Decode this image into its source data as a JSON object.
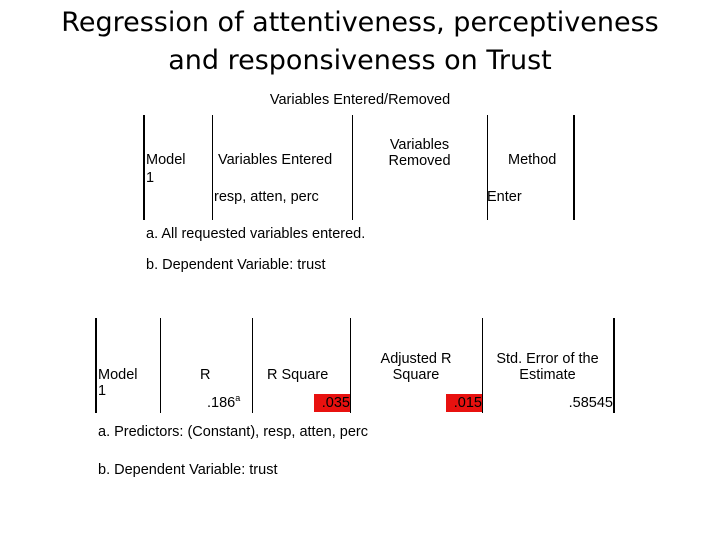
{
  "slide": {
    "title_line1": "Regression of attentiveness, perceptiveness",
    "title_line2": "and responsiveness on Trust"
  },
  "table1": {
    "caption": "Variables Entered/Removed",
    "headers": {
      "model": "Model",
      "variables_entered": "Variables Entered",
      "variables_removed_line1": "Variables",
      "variables_removed_line2": "Removed",
      "method": "Method"
    },
    "row": {
      "model": "1",
      "variables_entered": "resp, atten, perc",
      "variables_removed": "",
      "method": "Enter"
    },
    "footnotes": [
      "a. All requested variables entered.",
      "b. Dependent Variable: trust"
    ]
  },
  "table2": {
    "headers": {
      "model": "Model",
      "r": "R",
      "r_square": "R Square",
      "adj_r_square_line1": "Adjusted R",
      "adj_r_square_line2": "Square",
      "std_error_line1": "Std. Error of the",
      "std_error_line2": "Estimate"
    },
    "row": {
      "model": "1",
      "r": ".186",
      "r_sup": "a",
      "r_square": ".035",
      "adj_r_square": ".015",
      "std_error": ".58545"
    },
    "highlight_color": "#e8110f",
    "footnotes": [
      "a. Predictors: (Constant), resp, atten, perc",
      "b. Dependent Variable: trust"
    ]
  }
}
